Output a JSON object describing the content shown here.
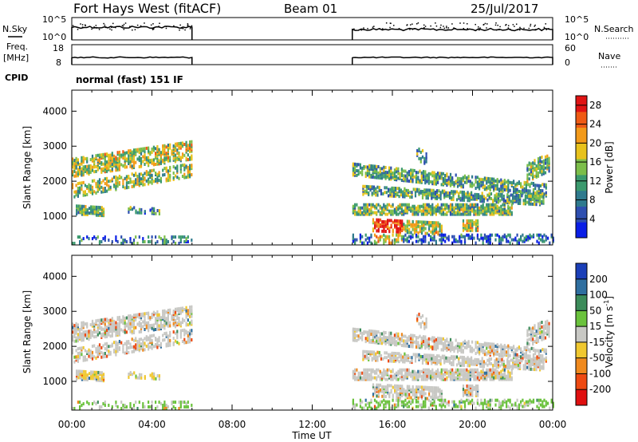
{
  "header": {
    "station": "Fort Hays West (fitACF)",
    "beam": "Beam 01",
    "date": "25/Jul/2017"
  },
  "small_panels": {
    "nsky_label": "N.Sky",
    "nsky_ticks": [
      "10^5",
      "10^0"
    ],
    "nsearch_label": "N.Search",
    "nsearch_ticks": [
      "10^5",
      "10^0"
    ],
    "freq_label": "Freq.",
    "freq_unit": "[MHz]",
    "freq_ticks": [
      "18",
      "8"
    ],
    "nave_label": "Nave",
    "nave_ticks": [
      "60",
      "0"
    ],
    "cpid_label": "CPID",
    "cpid_text": "normal (fast) 151 IF"
  },
  "chart_data": [
    {
      "type": "heatmap",
      "title": "",
      "xlabel": "",
      "ylabel": "Slant Range [km]",
      "x_ticks": [
        "00:00",
        "04:00",
        "08:00",
        "12:00",
        "16:00",
        "20:00",
        "00:00"
      ],
      "y_ticks": [
        1000,
        2000,
        3000,
        4000
      ],
      "xlim_hours": [
        0,
        24
      ],
      "ylim_km": [
        180,
        4600
      ],
      "colorbar": {
        "label": "Power [dB]",
        "ticks": [
          4,
          8,
          12,
          16,
          20,
          24,
          28
        ],
        "range": [
          0,
          30
        ],
        "colors": [
          "#0a1ee6",
          "#2e4fb0",
          "#2f7a8e",
          "#3b9a6e",
          "#7cbe4a",
          "#e8c21c",
          "#f39a1a",
          "#ef5a14",
          "#e01414"
        ]
      },
      "data_gaps": [
        [
          6,
          14
        ]
      ]
    },
    {
      "type": "heatmap",
      "title": "",
      "xlabel": "Time UT",
      "ylabel": "Slant Range [km]",
      "x_ticks": [
        "00:00",
        "04:00",
        "08:00",
        "12:00",
        "16:00",
        "20:00",
        "00:00"
      ],
      "y_ticks": [
        1000,
        2000,
        3000,
        4000
      ],
      "xlim_hours": [
        0,
        24
      ],
      "ylim_km": [
        180,
        4600
      ],
      "colorbar": {
        "label": "Velocity [m s",
        "label_superscript": "-1",
        "label_close": "]",
        "ticks": [
          "200",
          "100",
          "50",
          "15",
          "-15",
          "-50",
          "-100",
          "-200"
        ],
        "colors": [
          "#1b3fb8",
          "#2f6fa0",
          "#3c8c5a",
          "#6ac23c",
          "#c8c8c4",
          "#f0c830",
          "#f08a1e",
          "#ee4a12",
          "#e01010"
        ]
      },
      "data_gaps": [
        [
          6,
          14
        ]
      ]
    }
  ]
}
